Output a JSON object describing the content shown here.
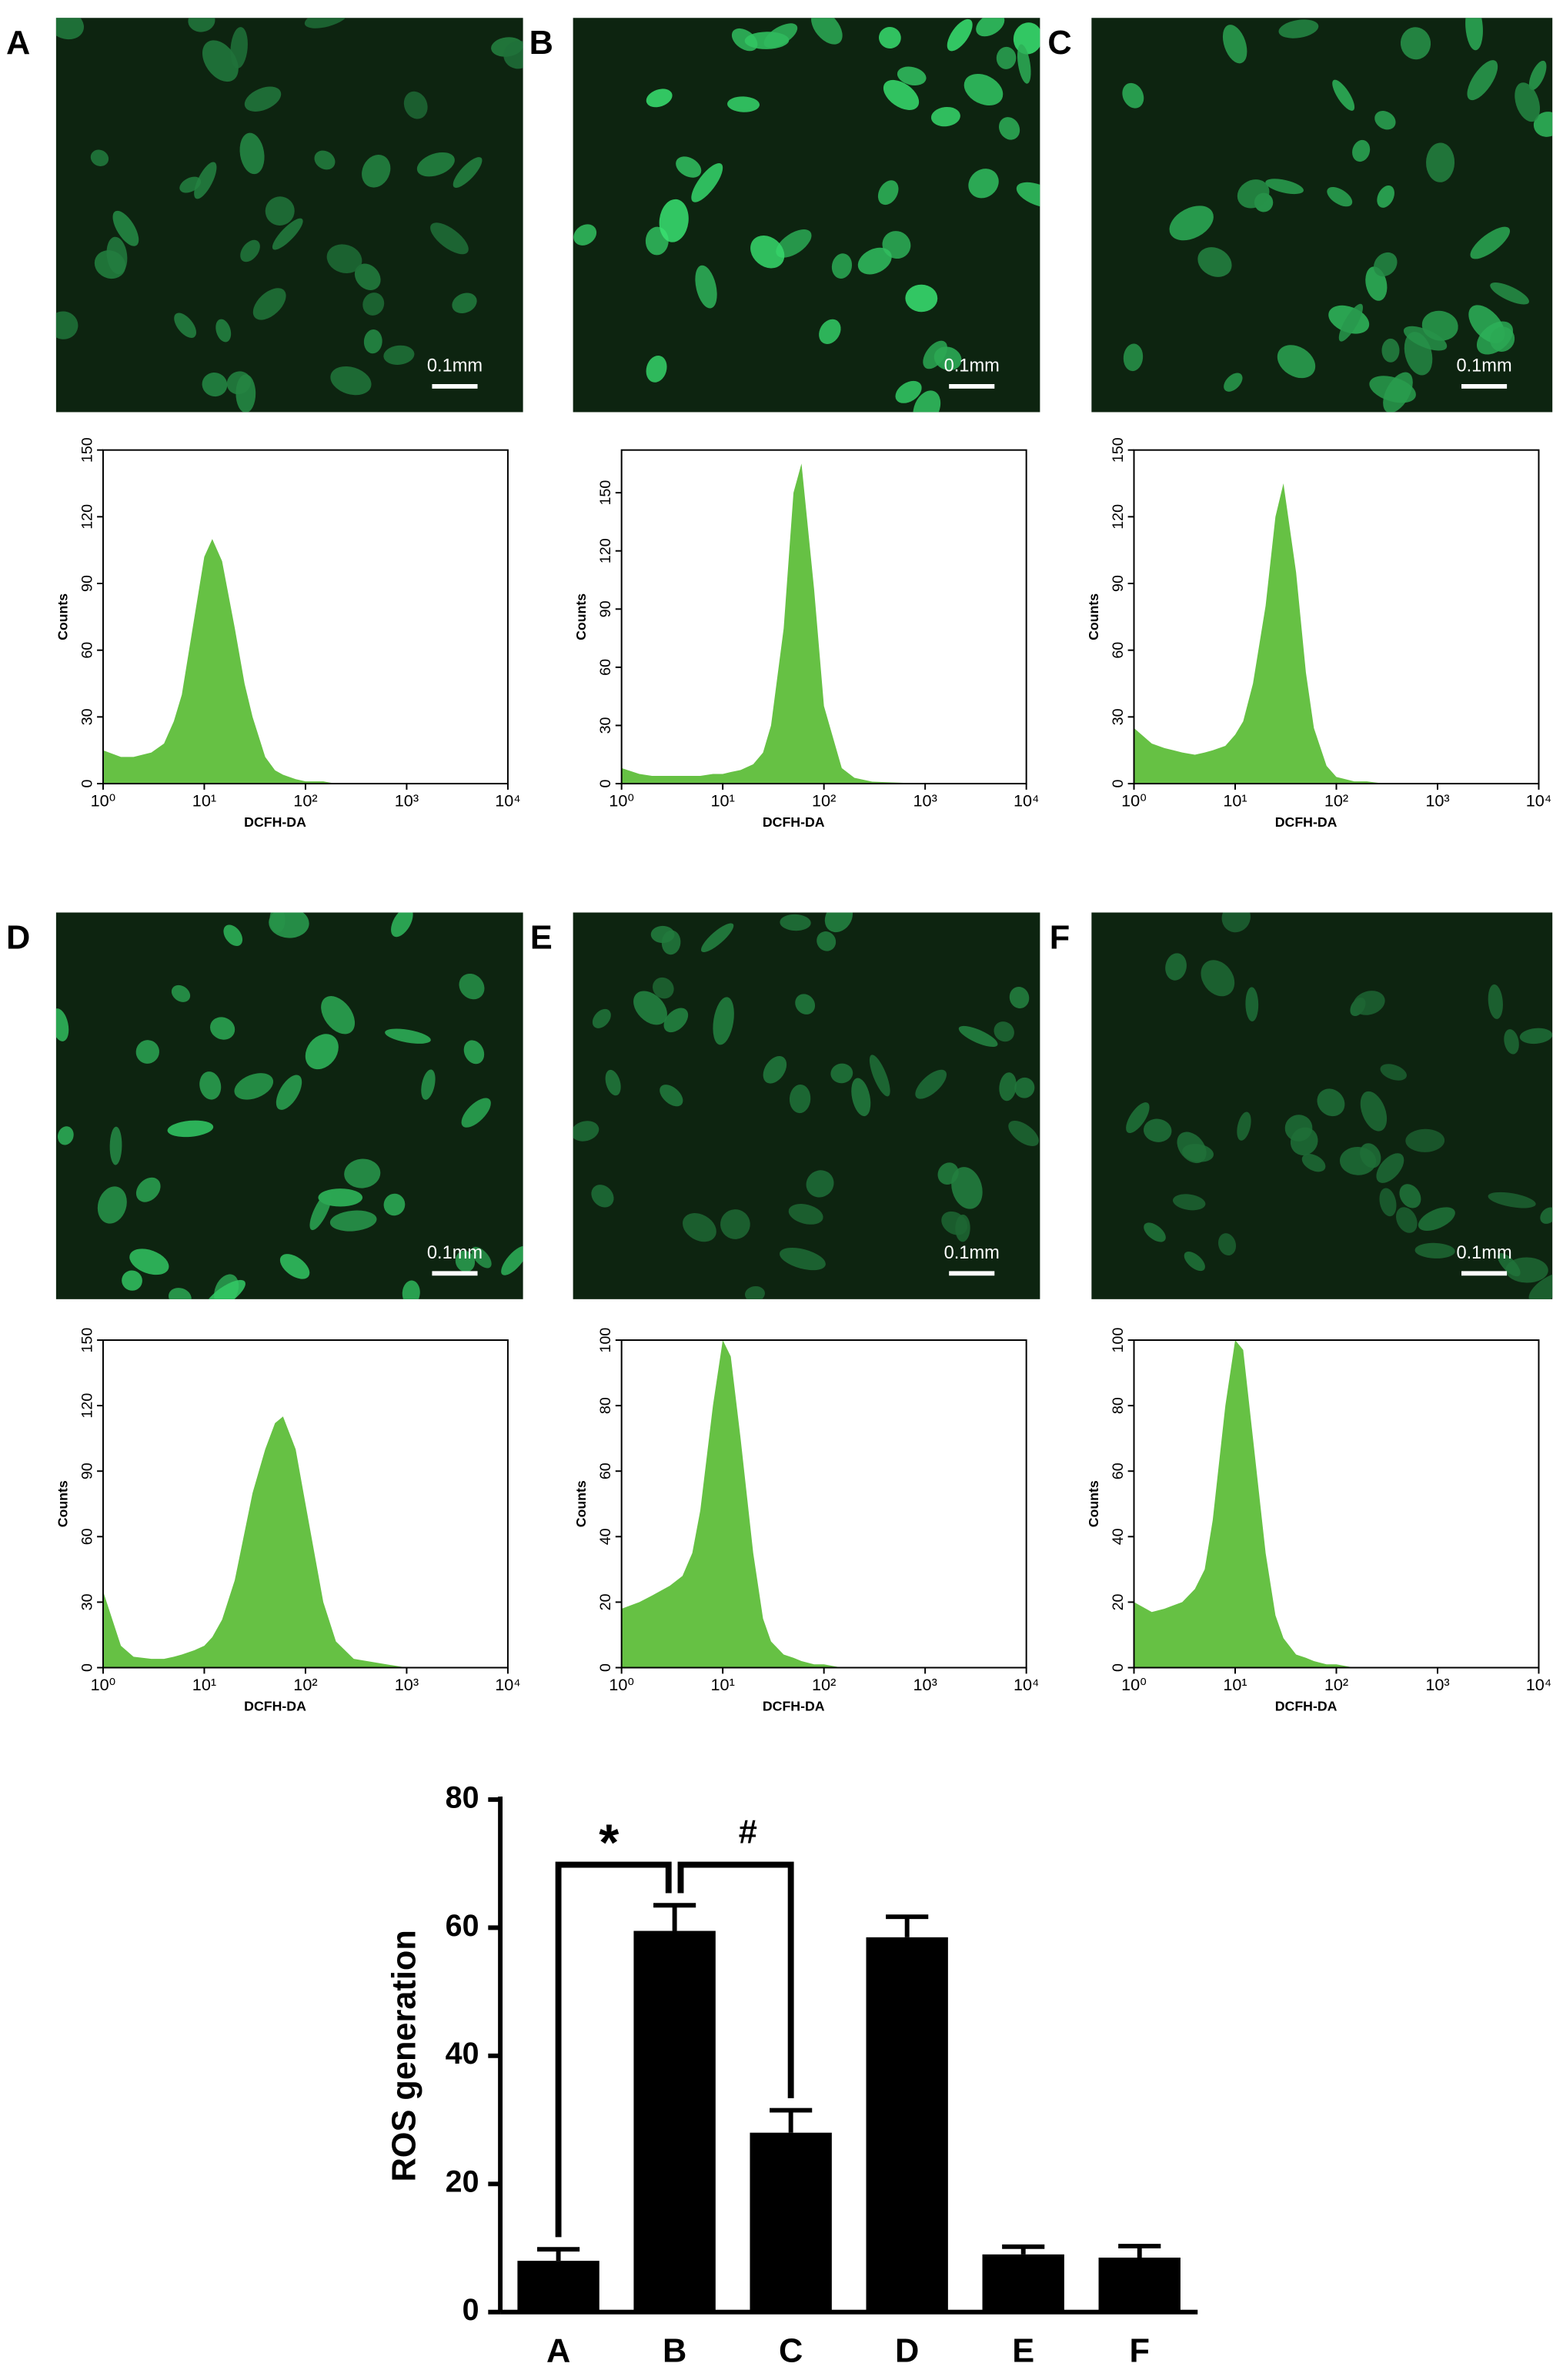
{
  "panels": [
    {
      "label": "A",
      "scale_bar": "0.1mm"
    },
    {
      "label": "B",
      "scale_bar": "0.1mm"
    },
    {
      "label": "C",
      "scale_bar": "0.1mm"
    },
    {
      "label": "D",
      "scale_bar": "0.1mm"
    },
    {
      "label": "E",
      "scale_bar": "0.1mm"
    },
    {
      "label": "F",
      "scale_bar": "0.1mm"
    }
  ],
  "chart_data": [
    {
      "type": "area",
      "x_label": "DCFH-DA",
      "y_label": "Counts",
      "color": "#66c144",
      "log_x": true,
      "x": [
        1,
        1.5,
        2,
        3,
        4,
        5,
        6,
        8,
        10,
        12,
        15,
        20,
        25,
        30,
        40,
        50,
        60,
        80,
        100,
        150,
        200,
        300,
        1000,
        10000
      ],
      "values": [
        15,
        12,
        12,
        14,
        18,
        28,
        40,
        75,
        102,
        110,
        100,
        70,
        45,
        30,
        12,
        6,
        4,
        2,
        1,
        1,
        0,
        0,
        0,
        0
      ],
      "xlim": [
        1,
        10000
      ],
      "xticks": [
        {
          "value": 1,
          "label": "10⁰"
        },
        {
          "value": 10,
          "label": "10¹"
        },
        {
          "value": 100,
          "label": "10²"
        },
        {
          "value": 1000,
          "label": "10³"
        },
        {
          "value": 10000,
          "label": "10⁴"
        }
      ],
      "ylim": [
        0,
        150
      ],
      "yticks": [
        0,
        30,
        60,
        90,
        120,
        150
      ]
    },
    {
      "type": "area",
      "x_label": "DCFH-DA",
      "y_label": "Counts",
      "color": "#66c144",
      "log_x": true,
      "x": [
        1,
        1.5,
        2,
        3,
        4,
        5,
        6,
        8,
        10,
        12,
        15,
        20,
        25,
        30,
        40,
        50,
        60,
        80,
        100,
        150,
        200,
        300,
        1000,
        10000
      ],
      "values": [
        8,
        5,
        4,
        4,
        4,
        4,
        4,
        5,
        5,
        6,
        7,
        10,
        16,
        30,
        80,
        150,
        165,
        100,
        40,
        8,
        3,
        1,
        0,
        0
      ],
      "xlim": [
        1,
        10000
      ],
      "xticks": [
        {
          "value": 1,
          "label": "10⁰"
        },
        {
          "value": 10,
          "label": "10¹"
        },
        {
          "value": 100,
          "label": "10²"
        },
        {
          "value": 1000,
          "label": "10³"
        },
        {
          "value": 10000,
          "label": "10⁴"
        }
      ],
      "ylim": [
        0,
        172
      ],
      "yticks": [
        0,
        30,
        60,
        90,
        120,
        150
      ]
    },
    {
      "type": "area",
      "x_label": "DCFH-DA",
      "y_label": "Counts",
      "color": "#66c144",
      "log_x": true,
      "x": [
        1,
        1.5,
        2,
        3,
        4,
        5,
        6,
        8,
        10,
        12,
        15,
        20,
        25,
        30,
        40,
        50,
        60,
        80,
        100,
        150,
        200,
        300,
        1000,
        10000
      ],
      "values": [
        25,
        18,
        16,
        14,
        13,
        14,
        15,
        17,
        22,
        28,
        45,
        80,
        120,
        135,
        95,
        50,
        25,
        8,
        3,
        1,
        1,
        0,
        0,
        0
      ],
      "xlim": [
        1,
        10000
      ],
      "xticks": [
        {
          "value": 1,
          "label": "10⁰"
        },
        {
          "value": 10,
          "label": "10¹"
        },
        {
          "value": 100,
          "label": "10²"
        },
        {
          "value": 1000,
          "label": "10³"
        },
        {
          "value": 10000,
          "label": "10⁴"
        }
      ],
      "ylim": [
        0,
        150
      ],
      "yticks": [
        0,
        30,
        60,
        90,
        120,
        150
      ]
    },
    {
      "type": "area",
      "x_label": "DCFH-DA",
      "y_label": "Counts",
      "color": "#66c144",
      "log_x": true,
      "x": [
        1,
        1.5,
        2,
        3,
        4,
        5,
        6,
        8,
        10,
        12,
        15,
        20,
        25,
        30,
        40,
        50,
        60,
        80,
        100,
        150,
        200,
        300,
        1000,
        10000
      ],
      "values": [
        35,
        10,
        5,
        4,
        4,
        5,
        6,
        8,
        10,
        14,
        22,
        40,
        62,
        80,
        100,
        112,
        115,
        100,
        75,
        30,
        12,
        4,
        0,
        0
      ],
      "xlim": [
        1,
        10000
      ],
      "xticks": [
        {
          "value": 1,
          "label": "10⁰"
        },
        {
          "value": 10,
          "label": "10¹"
        },
        {
          "value": 100,
          "label": "10²"
        },
        {
          "value": 1000,
          "label": "10³"
        },
        {
          "value": 10000,
          "label": "10⁴"
        }
      ],
      "ylim": [
        0,
        150
      ],
      "yticks": [
        0,
        30,
        60,
        90,
        120,
        150
      ]
    },
    {
      "type": "area",
      "x_label": "DCFH-DA",
      "y_label": "Counts",
      "color": "#66c144",
      "log_x": true,
      "x": [
        1,
        1.5,
        2,
        3,
        4,
        5,
        6,
        8,
        10,
        12,
        15,
        20,
        25,
        30,
        40,
        50,
        60,
        80,
        100,
        150,
        200,
        300,
        1000,
        10000
      ],
      "values": [
        18,
        20,
        22,
        25,
        28,
        35,
        48,
        80,
        100,
        95,
        70,
        35,
        15,
        8,
        4,
        3,
        2,
        1,
        1,
        0,
        0,
        0,
        0,
        0
      ],
      "xlim": [
        1,
        10000
      ],
      "xticks": [
        {
          "value": 1,
          "label": "10⁰"
        },
        {
          "value": 10,
          "label": "10¹"
        },
        {
          "value": 100,
          "label": "10²"
        },
        {
          "value": 1000,
          "label": "10³"
        },
        {
          "value": 10000,
          "label": "10⁴"
        }
      ],
      "ylim": [
        0,
        100
      ],
      "yticks": [
        0,
        20,
        40,
        60,
        80,
        100
      ]
    },
    {
      "type": "area",
      "x_label": "DCFH-DA",
      "y_label": "Counts",
      "color": "#66c144",
      "log_x": true,
      "x": [
        1,
        1.5,
        2,
        3,
        4,
        5,
        6,
        8,
        10,
        12,
        15,
        20,
        25,
        30,
        40,
        50,
        60,
        80,
        100,
        150,
        200,
        300,
        1000,
        10000
      ],
      "values": [
        20,
        17,
        18,
        20,
        24,
        30,
        45,
        80,
        100,
        97,
        70,
        35,
        16,
        9,
        4,
        3,
        2,
        1,
        1,
        0,
        0,
        0,
        0,
        0
      ],
      "xlim": [
        1,
        10000
      ],
      "xticks": [
        {
          "value": 1,
          "label": "10⁰"
        },
        {
          "value": 10,
          "label": "10¹"
        },
        {
          "value": 100,
          "label": "10²"
        },
        {
          "value": 1000,
          "label": "10³"
        },
        {
          "value": 10000,
          "label": "10⁴"
        }
      ],
      "ylim": [
        0,
        100
      ],
      "yticks": [
        0,
        20,
        40,
        60,
        80,
        100
      ]
    },
    {
      "type": "bar",
      "y_label": "ROS generation",
      "color": "#000000",
      "categories": [
        "A",
        "B",
        "C",
        "D",
        "E",
        "F"
      ],
      "values": [
        8,
        59.5,
        28,
        58.5,
        9,
        8.5
      ],
      "errors": [
        1.8,
        4,
        3.5,
        3.2,
        1.2,
        1.8
      ],
      "ylim": [
        0,
        80
      ],
      "yticks": [
        0,
        20,
        40,
        60,
        80
      ],
      "annotations": [
        {
          "text": "*",
          "from": 0,
          "to": 1
        },
        {
          "text": "#",
          "from": 1,
          "to": 2
        }
      ]
    }
  ]
}
